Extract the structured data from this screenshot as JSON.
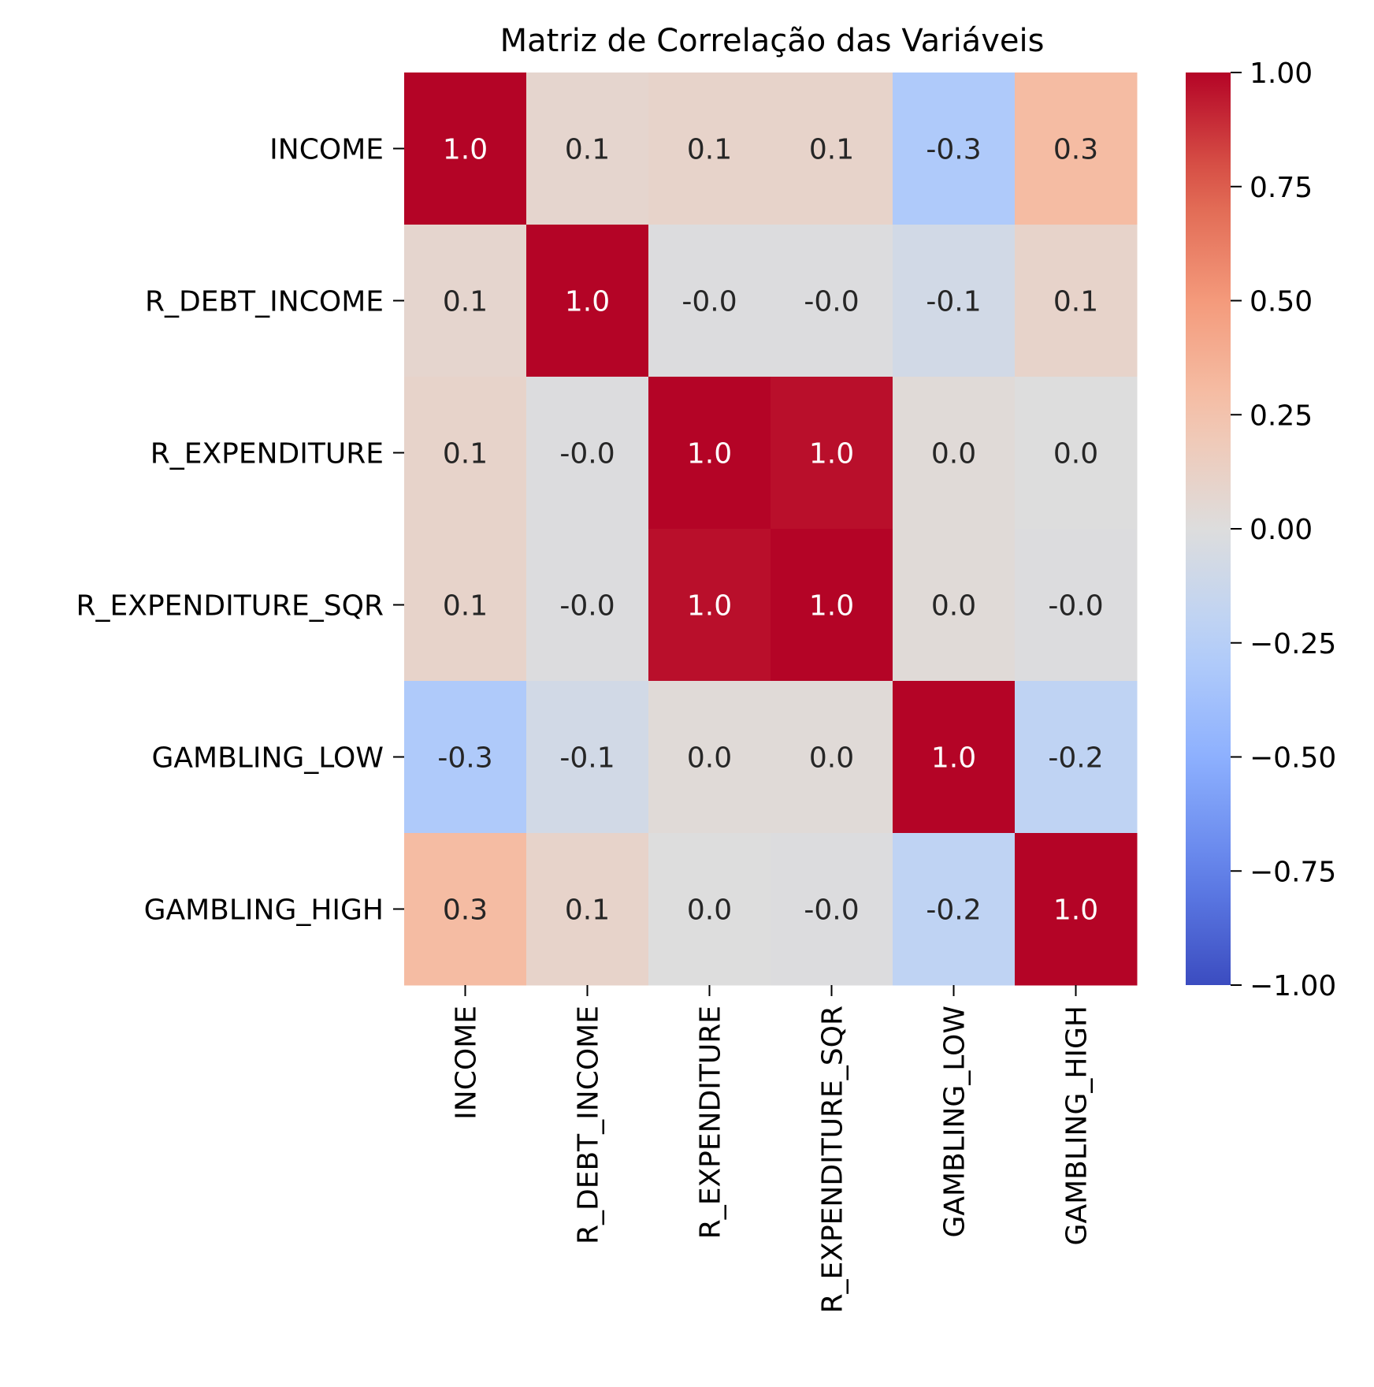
{
  "chart_data": {
    "type": "heatmap",
    "title": "Matriz de Correlação das Variáveis",
    "variables": [
      "INCOME",
      "R_DEBT_INCOME",
      "R_EXPENDITURE",
      "R_EXPENDITURE_SQR",
      "GAMBLING_LOW",
      "GAMBLING_HIGH"
    ],
    "values": [
      [
        1.0,
        0.08,
        0.1,
        0.1,
        -0.3,
        0.3
      ],
      [
        0.08,
        1.0,
        -0.01,
        -0.01,
        -0.08,
        0.1
      ],
      [
        0.1,
        -0.01,
        1.0,
        0.97,
        0.03,
        0.0
      ],
      [
        0.1,
        -0.01,
        0.97,
        1.0,
        0.03,
        -0.01
      ],
      [
        -0.3,
        -0.08,
        0.03,
        0.03,
        1.0,
        -0.2
      ],
      [
        0.3,
        0.1,
        0.0,
        -0.01,
        -0.2,
        1.0
      ]
    ],
    "annotations": [
      [
        "1.0",
        "0.1",
        "0.1",
        "0.1",
        "-0.3",
        "0.3"
      ],
      [
        "0.1",
        "1.0",
        "-0.0",
        "-0.0",
        "-0.1",
        "0.1"
      ],
      [
        "0.1",
        "-0.0",
        "1.0",
        "1.0",
        "0.0",
        "0.0"
      ],
      [
        "0.1",
        "-0.0",
        "1.0",
        "1.0",
        "0.0",
        "-0.0"
      ],
      [
        "-0.3",
        "-0.1",
        "0.0",
        "0.0",
        "1.0",
        "-0.2"
      ],
      [
        "0.3",
        "0.1",
        "0.0",
        "-0.0",
        "-0.2",
        "1.0"
      ]
    ],
    "colormap": "coolwarm",
    "vmin": -1.0,
    "vmax": 1.0,
    "colorbar_ticks": [
      "1.00",
      "0.75",
      "0.50",
      "0.25",
      "0.00",
      "−0.25",
      "−0.50",
      "−0.75",
      "−1.00"
    ],
    "colorbar_tick_values": [
      1.0,
      0.75,
      0.5,
      0.25,
      0.0,
      -0.25,
      -0.5,
      -0.75,
      -1.0
    ],
    "legend_position": "right"
  }
}
